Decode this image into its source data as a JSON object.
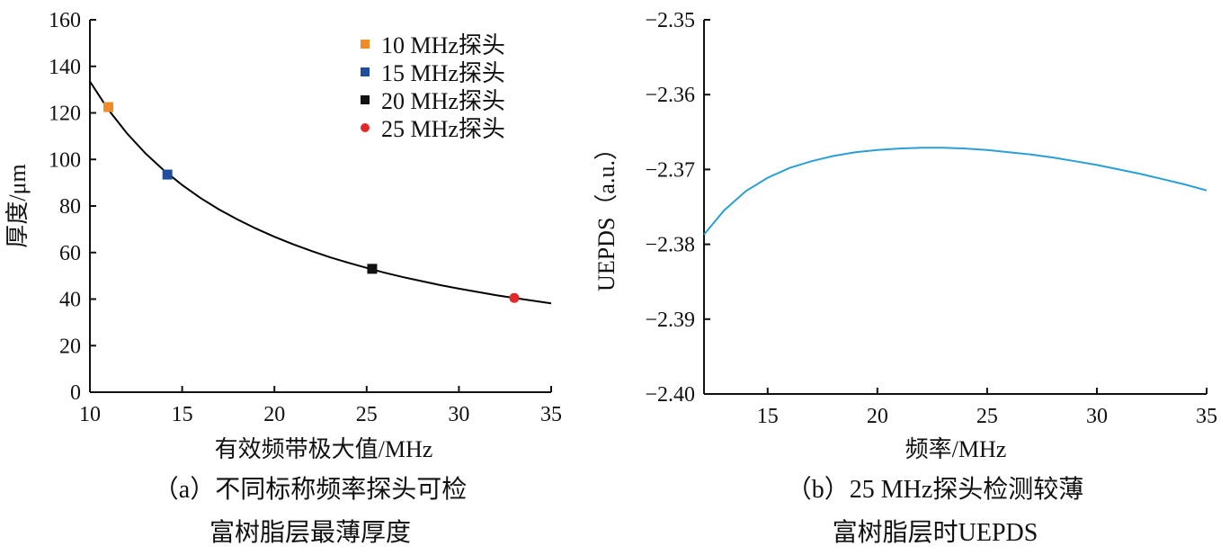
{
  "chart_data": [
    {
      "type": "line",
      "xlabel": "有效频带极大值/MHz",
      "ylabel": "厚度/μm",
      "xlim": [
        10,
        35
      ],
      "ylim": [
        0,
        160
      ],
      "x_ticks": [
        "10",
        "15",
        "20",
        "25",
        "30",
        "35"
      ],
      "y_ticks": [
        "0",
        "20",
        "40",
        "60",
        "80",
        "100",
        "120",
        "140",
        "160"
      ],
      "grid": false,
      "legend_position": "top-right",
      "curve": {
        "color": "#000000",
        "x": [
          10,
          11,
          12,
          13,
          14,
          15,
          16,
          17,
          18,
          19,
          20,
          21,
          22,
          23,
          24,
          25,
          26,
          27,
          28,
          29,
          30,
          31,
          32,
          33,
          34,
          35
        ],
        "y": [
          133.5,
          121.4,
          111.3,
          102.7,
          95.4,
          89.0,
          83.4,
          78.5,
          74.2,
          70.3,
          66.8,
          63.6,
          60.7,
          58.0,
          55.6,
          53.4,
          51.3,
          49.4,
          47.7,
          46.0,
          44.5,
          43.1,
          41.7,
          40.5,
          39.3,
          38.2
        ]
      },
      "series": [
        {
          "name": "10 MHz探头",
          "marker": "square",
          "color": "#f08c28",
          "x": 11.0,
          "y": 122.5
        },
        {
          "name": "15 MHz探头",
          "marker": "square",
          "color": "#1f4e9e",
          "x": 14.2,
          "y": 93.5
        },
        {
          "name": "20 MHz探头",
          "marker": "square",
          "color": "#111111",
          "x": 25.3,
          "y": 53.0
        },
        {
          "name": "25 MHz探头",
          "marker": "circle",
          "color": "#e02a2a",
          "x": 33.0,
          "y": 40.5
        }
      ]
    },
    {
      "type": "line",
      "xlabel": "频率/MHz",
      "ylabel": "UEPDS（a.u.）",
      "xlim": [
        12.1,
        35
      ],
      "ylim": [
        -2.4,
        -2.35
      ],
      "x_ticks_values": [
        15,
        20,
        25,
        30,
        35
      ],
      "x_ticks": [
        "15",
        "20",
        "25",
        "30",
        "35"
      ],
      "y_ticks_values": [
        -2.35,
        -2.36,
        -2.37,
        -2.38,
        -2.39,
        -2.4
      ],
      "y_ticks": [
        "−2.35",
        "−2.36",
        "−2.37",
        "−2.38",
        "−2.39",
        "−2.40"
      ],
      "grid": false,
      "series": [
        {
          "color": "#2a9fd6",
          "x": [
            12.1,
            13,
            14,
            15,
            16,
            17,
            18,
            19,
            20,
            21,
            22,
            23,
            24,
            25,
            26,
            27,
            28,
            29,
            30,
            31,
            32,
            33,
            34,
            35
          ],
          "y": [
            -2.3787,
            -2.3755,
            -2.3729,
            -2.3711,
            -2.3698,
            -2.3689,
            -2.3682,
            -2.3677,
            -2.3674,
            -2.3672,
            -2.3671,
            -2.3671,
            -2.3672,
            -2.3674,
            -2.3677,
            -2.368,
            -2.3684,
            -2.3689,
            -2.3694,
            -2.37,
            -2.3706,
            -2.3713,
            -2.372,
            -2.3728
          ]
        }
      ]
    }
  ],
  "captions": {
    "a_line1": "（a）不同标称频率探头可检",
    "a_line2": "富树脂层最薄厚度",
    "b_line1": "（b）25 MHz探头检测较薄",
    "b_line2": "富树脂层时UEPDS"
  }
}
